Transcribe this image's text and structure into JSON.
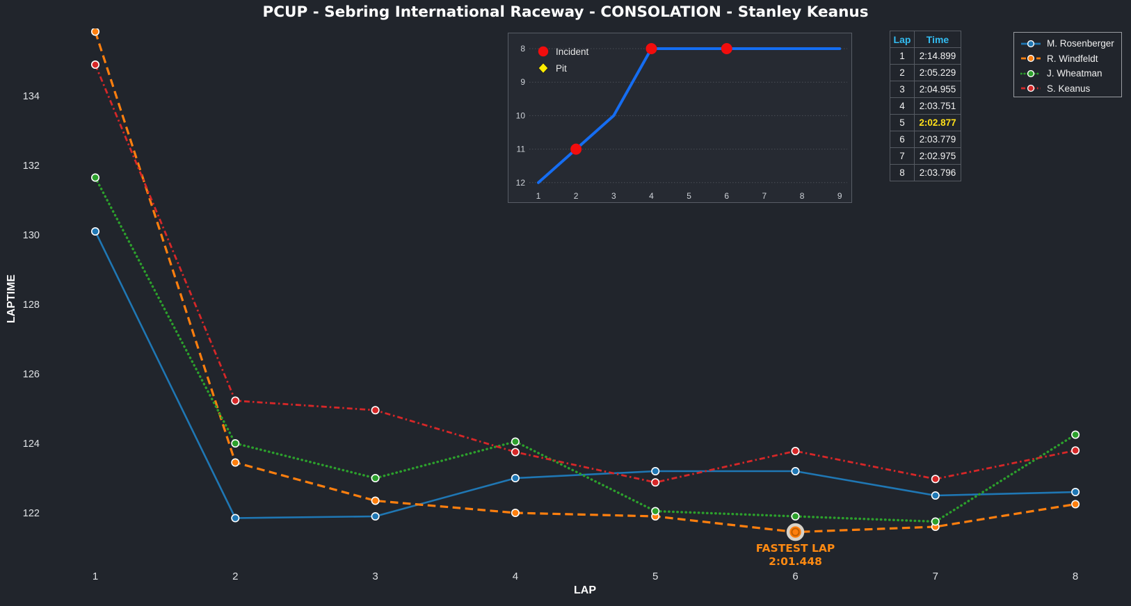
{
  "title": "PCUP - Sebring International Raceway - CONSOLATION - Stanley Keanus",
  "chart_data": {
    "main": {
      "type": "line",
      "xlabel": "LAP",
      "ylabel": "LAPTIME",
      "x": [
        1,
        2,
        3,
        4,
        5,
        6,
        7,
        8
      ],
      "yticks": [
        122,
        124,
        126,
        128,
        130,
        132,
        134
      ],
      "ylim": [
        120.9,
        136.3
      ],
      "grid": false,
      "legend_position": "top-right",
      "series": [
        {
          "name": "M. Rosenberger",
          "color": "#1f77b4",
          "style": "solid",
          "values": [
            130.1,
            121.85,
            121.9,
            123.0,
            123.2,
            123.2,
            122.5,
            122.6
          ]
        },
        {
          "name": "R. Windfeldt",
          "color": "#ff7f0e",
          "style": "dashed",
          "values": [
            135.85,
            123.45,
            122.35,
            122.0,
            121.9,
            121.448,
            121.6,
            122.25
          ]
        },
        {
          "name": "J. Wheatman",
          "color": "#2ca02c",
          "style": "dotted",
          "values": [
            131.65,
            124.0,
            123.0,
            124.05,
            122.05,
            121.9,
            121.75,
            124.25
          ]
        },
        {
          "name": "S. Keanus",
          "color": "#d62728",
          "style": "dashdot",
          "values": [
            134.899,
            125.229,
            124.955,
            123.751,
            122.877,
            123.779,
            122.975,
            123.796
          ]
        }
      ],
      "annotation": {
        "series": "R. Windfeldt",
        "lap": 6,
        "value": 121.448,
        "label_line1": "FASTEST LAP",
        "label_line2": "2:01.448",
        "color": "#ff8a12",
        "halo_color": "#d8d2c8"
      }
    },
    "inset": {
      "type": "line",
      "x": [
        1,
        2,
        3,
        4,
        5,
        6,
        7,
        8,
        9
      ],
      "positions": [
        12,
        11,
        10,
        8,
        8,
        8,
        8,
        8,
        8
      ],
      "yticks": [
        8,
        9,
        10,
        11,
        12
      ],
      "y_inverted": true,
      "grid": true,
      "line_color": "#156df2",
      "incidents": [
        {
          "lap": 2,
          "position": 11
        },
        {
          "lap": 4,
          "position": 8
        },
        {
          "lap": 6,
          "position": 8
        }
      ],
      "pits": [],
      "legend": [
        {
          "label": "Incident",
          "marker": "circle",
          "color": "#f10d0d"
        },
        {
          "label": "Pit",
          "marker": "diamond",
          "color": "#ffee00"
        }
      ]
    }
  },
  "lap_table": {
    "headers": [
      "Lap",
      "Time"
    ],
    "rows": [
      [
        "1",
        "2:14.899"
      ],
      [
        "2",
        "2:05.229"
      ],
      [
        "3",
        "2:04.955"
      ],
      [
        "4",
        "2:03.751"
      ],
      [
        "5",
        "2:02.877"
      ],
      [
        "6",
        "2:03.779"
      ],
      [
        "7",
        "2:02.975"
      ],
      [
        "8",
        "2:03.796"
      ]
    ],
    "highlight_row_index": 4,
    "header_color": "#33bdf2",
    "highlight_color": "#ffe01a"
  },
  "colors": {
    "background": "#21252c",
    "inset_background": "#262a32",
    "text": "#f2f2f2",
    "tick_text": "#dfe2e5",
    "inset_tick_text": "#ced2d8",
    "grid": "#4a4e56",
    "panel_border": "#585d66"
  }
}
